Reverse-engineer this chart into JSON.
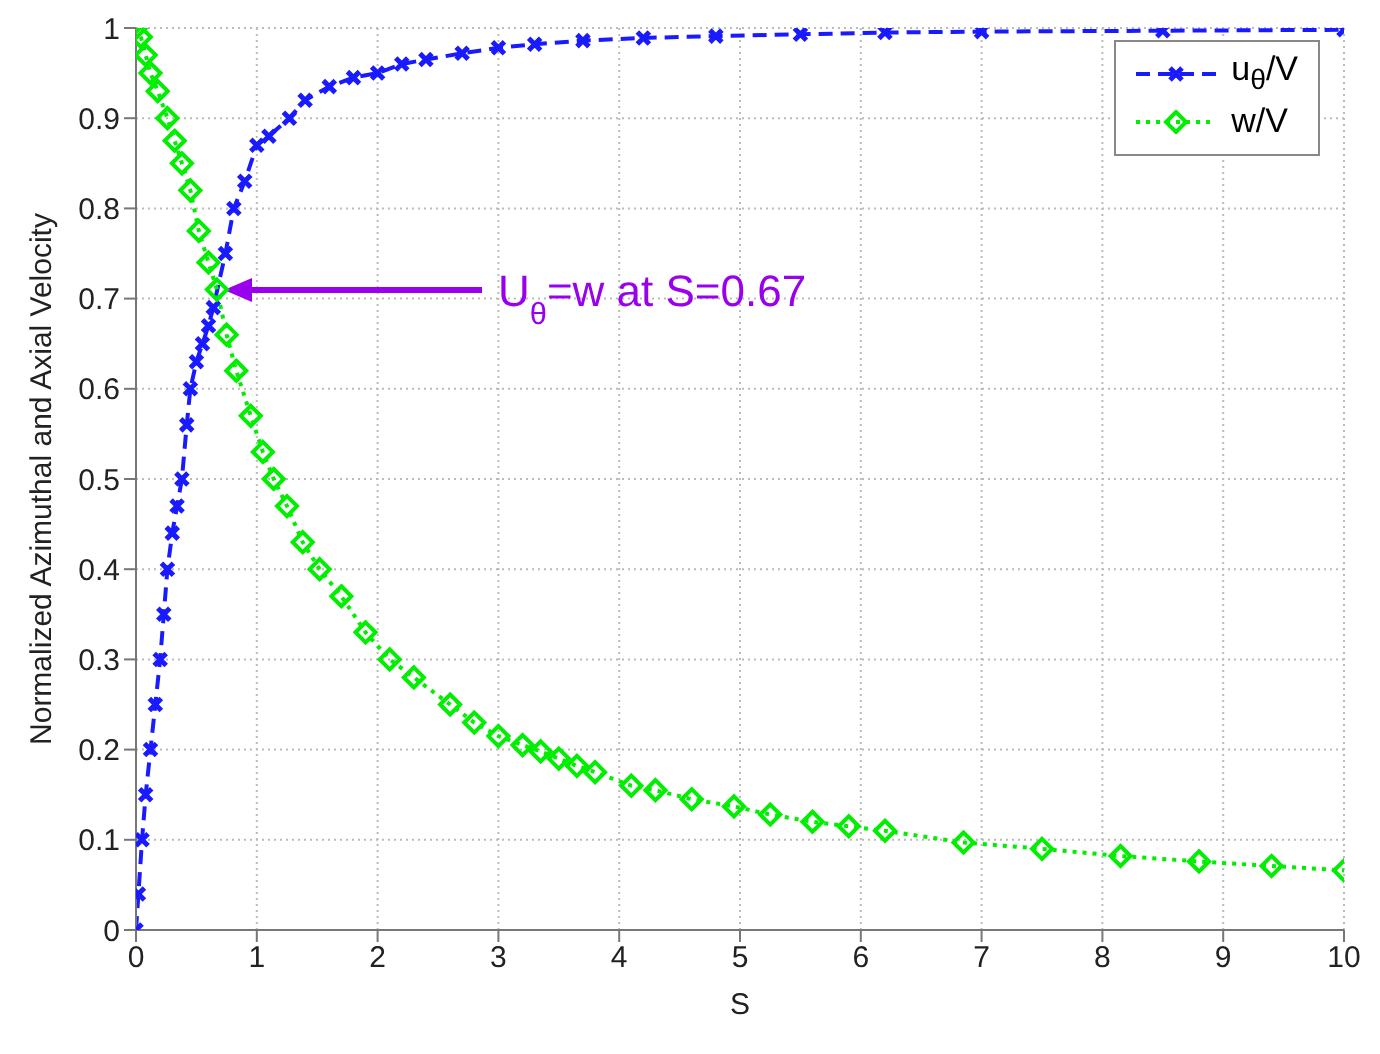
{
  "chart_data": {
    "type": "line",
    "xlabel": "S",
    "ylabel": "Normalized Azimuthal and Axial Velocity",
    "xlim": [
      0,
      10
    ],
    "xticks": [
      0,
      1,
      2,
      3,
      4,
      5,
      6,
      7,
      8,
      9,
      10
    ],
    "ylim": [
      0,
      1
    ],
    "yticks": [
      0,
      0.1,
      0.2,
      0.3,
      0.4,
      0.5,
      0.6,
      0.7,
      0.8,
      0.9,
      1
    ],
    "grid": true,
    "legend": "top right",
    "annotations": [
      "U$_{θ}$=w at S=0.67"
    ],
    "series": [
      {
        "name": "u$_{θ}$/V",
        "color": "#1a1aff",
        "marker": "cross",
        "line_style": "dashed",
        "x": [
          0,
          0.02,
          0.05,
          0.08,
          0.12,
          0.16,
          0.2,
          0.23,
          0.26,
          0.3,
          0.34,
          0.38,
          0.42,
          0.45,
          0.5,
          0.55,
          0.6,
          0.64,
          0.74,
          0.81,
          0.9,
          1.0,
          1.1,
          1.27,
          1.4,
          1.6,
          1.8,
          2.0,
          2.2,
          2.4,
          2.7,
          3.0,
          3.3,
          3.7,
          4.2,
          4.8,
          5.5,
          6.2,
          7.0,
          8.5,
          10
        ],
        "values": [
          0,
          0.04,
          0.1,
          0.15,
          0.2,
          0.25,
          0.3,
          0.35,
          0.4,
          0.44,
          0.47,
          0.5,
          0.56,
          0.6,
          0.63,
          0.65,
          0.67,
          0.69,
          0.75,
          0.8,
          0.83,
          0.87,
          0.88,
          0.9,
          0.92,
          0.935,
          0.945,
          0.95,
          0.96,
          0.965,
          0.972,
          0.978,
          0.982,
          0.986,
          0.989,
          0.991,
          0.993,
          0.995,
          0.996,
          0.997,
          0.998
        ]
      },
      {
        "name": "w/V",
        "color": "#00ee00",
        "marker": "diamond",
        "line_style": "dotted",
        "x": [
          0,
          0.04,
          0.08,
          0.12,
          0.18,
          0.26,
          0.32,
          0.38,
          0.45,
          0.52,
          0.6,
          0.67,
          0.75,
          0.83,
          0.95,
          1.05,
          1.14,
          1.25,
          1.38,
          1.52,
          1.7,
          1.9,
          2.1,
          2.3,
          2.6,
          2.8,
          3.0,
          3.2,
          3.35,
          3.5,
          3.65,
          3.8,
          4.1,
          4.3,
          4.6,
          4.95,
          5.25,
          5.6,
          5.9,
          6.2,
          6.85,
          7.5,
          8.15,
          8.8,
          9.4,
          10
        ],
        "values": [
          1,
          0.99,
          0.97,
          0.95,
          0.93,
          0.9,
          0.875,
          0.85,
          0.82,
          0.775,
          0.74,
          0.71,
          0.66,
          0.62,
          0.57,
          0.53,
          0.5,
          0.47,
          0.43,
          0.4,
          0.37,
          0.33,
          0.3,
          0.28,
          0.25,
          0.23,
          0.215,
          0.205,
          0.198,
          0.19,
          0.182,
          0.175,
          0.16,
          0.155,
          0.145,
          0.137,
          0.128,
          0.12,
          0.115,
          0.11,
          0.097,
          0.09,
          0.082,
          0.076,
          0.071,
          0.066
        ]
      }
    ]
  }
}
